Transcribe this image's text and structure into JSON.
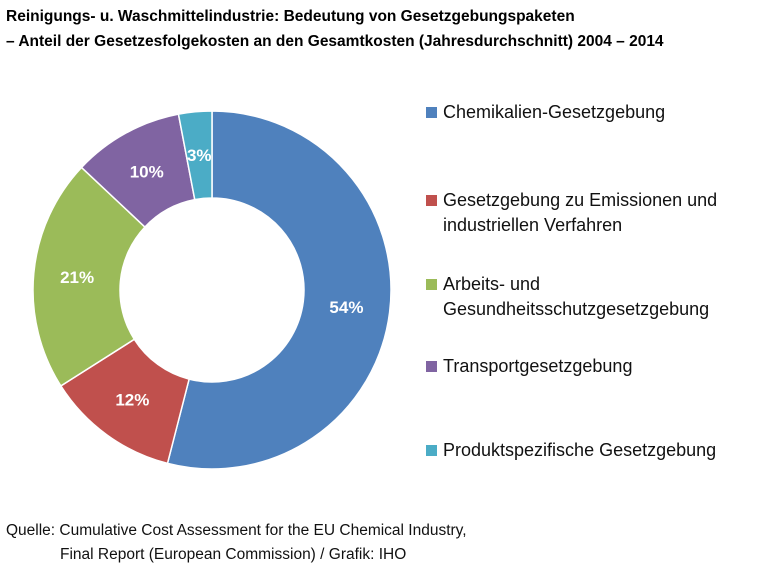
{
  "chart_data": {
    "type": "pie",
    "title": "Reinigungs- u. Waschmittelindustrie: Bedeutung von Gesetzgebungspaketen",
    "subtitle": "– Anteil der Gesetzesfolgekosten an den Gesamtkosten (Jahresdurchschnitt) 2004 – 2014",
    "donut": true,
    "legend_position": "right",
    "slices": [
      {
        "label": "Chemikalien-Gesetzgebung",
        "value": 54,
        "display": "54%",
        "color": "#4f81bd"
      },
      {
        "label": "Gesetzgebung zu Emissionen und industriellen Verfahren",
        "value": 12,
        "display": "12%",
        "color": "#c0504d"
      },
      {
        "label": "Arbeits- und Gesundheitsschutzgesetzgebung",
        "value": 21,
        "display": "21%",
        "color": "#9bbb59"
      },
      {
        "label": "Transportgesetzgebung",
        "value": 10,
        "display": "10%",
        "color": "#8064a2"
      },
      {
        "label": "Produktspezifische Gesetzgebung",
        "value": 3,
        "display": "3%",
        "color": "#4bacc6"
      }
    ]
  },
  "legend": {
    "items": [
      {
        "lines": [
          "Chemikalien-Gesetzgebung"
        ],
        "color": "#4f81bd"
      },
      {
        "lines": [
          "Gesetzgebung zu Emissionen und",
          "industriellen Verfahren"
        ],
        "color": "#c0504d"
      },
      {
        "lines": [
          "Arbeits- und",
          "Gesundheitsschutzgesetzgebung"
        ],
        "color": "#9bbb59"
      },
      {
        "lines": [
          "Transportgesetzgebung"
        ],
        "color": "#8064a2"
      },
      {
        "lines": [
          "Produktspezifische Gesetzgebung"
        ],
        "color": "#4bacc6"
      }
    ]
  },
  "source": {
    "line1": "Quelle: Cumulative Cost Assessment for the EU Chemical Industry,",
    "line2": "Final Report (European Commission) / Grafik: IHO"
  }
}
